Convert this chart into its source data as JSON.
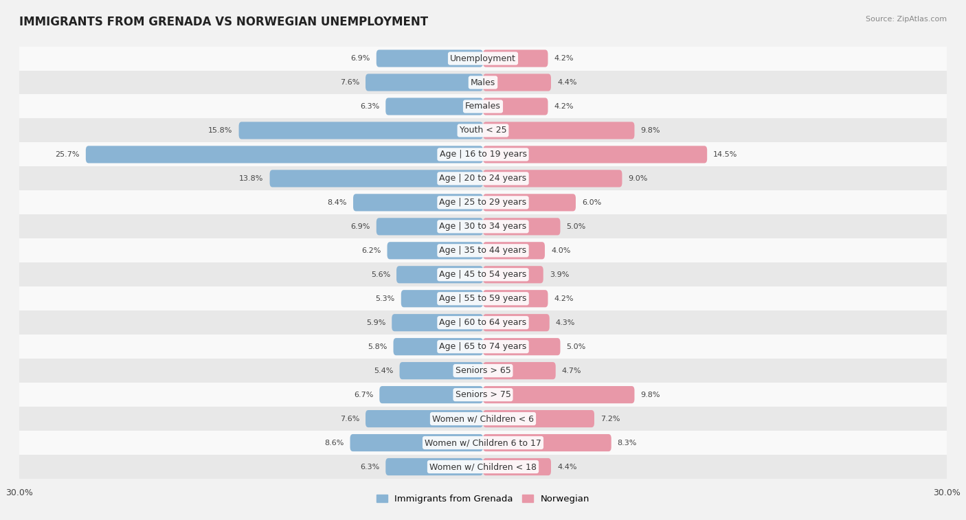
{
  "title": "IMMIGRANTS FROM GRENADA VS NORWEGIAN UNEMPLOYMENT",
  "source": "Source: ZipAtlas.com",
  "categories": [
    "Unemployment",
    "Males",
    "Females",
    "Youth < 25",
    "Age | 16 to 19 years",
    "Age | 20 to 24 years",
    "Age | 25 to 29 years",
    "Age | 30 to 34 years",
    "Age | 35 to 44 years",
    "Age | 45 to 54 years",
    "Age | 55 to 59 years",
    "Age | 60 to 64 years",
    "Age | 65 to 74 years",
    "Seniors > 65",
    "Seniors > 75",
    "Women w/ Children < 6",
    "Women w/ Children 6 to 17",
    "Women w/ Children < 18"
  ],
  "left_values": [
    6.9,
    7.6,
    6.3,
    15.8,
    25.7,
    13.8,
    8.4,
    6.9,
    6.2,
    5.6,
    5.3,
    5.9,
    5.8,
    5.4,
    6.7,
    7.6,
    8.6,
    6.3
  ],
  "right_values": [
    4.2,
    4.4,
    4.2,
    9.8,
    14.5,
    9.0,
    6.0,
    5.0,
    4.0,
    3.9,
    4.2,
    4.3,
    5.0,
    4.7,
    9.8,
    7.2,
    8.3,
    4.4
  ],
  "left_color": "#8ab4d4",
  "right_color": "#e898a8",
  "left_label": "Immigrants from Grenada",
  "right_label": "Norwegian",
  "axis_max": 30.0,
  "bg_color": "#f2f2f2",
  "row_bg_light": "#f9f9f9",
  "row_bg_dark": "#e8e8e8",
  "title_fontsize": 12,
  "label_fontsize": 9,
  "value_fontsize": 8
}
